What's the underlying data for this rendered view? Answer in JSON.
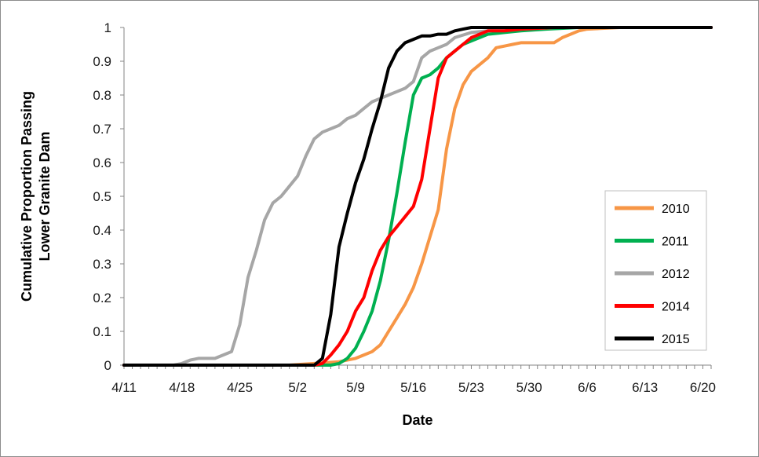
{
  "chart_data": {
    "type": "line",
    "title": "",
    "xlabel": "Date",
    "ylabel_lines": [
      "Cumulative Proportion Passing",
      "Lower Granite Dam"
    ],
    "x_ticks": [
      "4/11",
      "4/18",
      "4/25",
      "5/2",
      "5/9",
      "5/16",
      "5/23",
      "5/30",
      "6/6",
      "6/13",
      "6/20"
    ],
    "x_range": [
      "4/11",
      "6/21"
    ],
    "y_ticks": [
      "0",
      "0.1",
      "0.2",
      "0.3",
      "0.4",
      "0.5",
      "0.6",
      "0.7",
      "0.8",
      "0.9",
      "1"
    ],
    "ylim": [
      0,
      1
    ],
    "grid": false,
    "legend_position": "bottom-right",
    "series": [
      {
        "name": "2010",
        "color": "#f79646",
        "points": [
          [
            "4/11",
            0
          ],
          [
            "5/1",
            0
          ],
          [
            "5/4",
            0.005
          ],
          [
            "5/7",
            0.01
          ],
          [
            "5/9",
            0.02
          ],
          [
            "5/10",
            0.03
          ],
          [
            "5/11",
            0.04
          ],
          [
            "5/12",
            0.06
          ],
          [
            "5/13",
            0.1
          ],
          [
            "5/14",
            0.14
          ],
          [
            "5/15",
            0.18
          ],
          [
            "5/16",
            0.23
          ],
          [
            "5/17",
            0.3
          ],
          [
            "5/18",
            0.38
          ],
          [
            "5/19",
            0.46
          ],
          [
            "5/20",
            0.64
          ],
          [
            "5/21",
            0.76
          ],
          [
            "5/22",
            0.83
          ],
          [
            "5/23",
            0.87
          ],
          [
            "5/24",
            0.89
          ],
          [
            "5/25",
            0.91
          ],
          [
            "5/26",
            0.94
          ],
          [
            "5/27",
            0.945
          ],
          [
            "5/28",
            0.95
          ],
          [
            "5/29",
            0.955
          ],
          [
            "5/30",
            0.955
          ],
          [
            "6/1",
            0.955
          ],
          [
            "6/2",
            0.955
          ],
          [
            "6/3",
            0.97
          ],
          [
            "6/4",
            0.98
          ],
          [
            "6/5",
            0.99
          ],
          [
            "6/6",
            0.995
          ],
          [
            "6/10",
            1
          ],
          [
            "6/21",
            1
          ]
        ]
      },
      {
        "name": "2011",
        "color": "#00b050",
        "points": [
          [
            "4/11",
            0
          ],
          [
            "5/6",
            0
          ],
          [
            "5/7",
            0.005
          ],
          [
            "5/8",
            0.02
          ],
          [
            "5/9",
            0.05
          ],
          [
            "5/10",
            0.1
          ],
          [
            "5/11",
            0.16
          ],
          [
            "5/12",
            0.25
          ],
          [
            "5/13",
            0.37
          ],
          [
            "5/14",
            0.51
          ],
          [
            "5/15",
            0.66
          ],
          [
            "5/16",
            0.8
          ],
          [
            "5/17",
            0.85
          ],
          [
            "5/18",
            0.86
          ],
          [
            "5/19",
            0.88
          ],
          [
            "5/20",
            0.91
          ],
          [
            "5/21",
            0.93
          ],
          [
            "5/22",
            0.95
          ],
          [
            "5/23",
            0.96
          ],
          [
            "5/24",
            0.97
          ],
          [
            "5/25",
            0.98
          ],
          [
            "5/27",
            0.985
          ],
          [
            "5/29",
            0.99
          ],
          [
            "6/1",
            0.995
          ],
          [
            "6/5",
            1
          ],
          [
            "6/21",
            1
          ]
        ]
      },
      {
        "name": "2012",
        "color": "#a6a6a6",
        "points": [
          [
            "4/11",
            0
          ],
          [
            "4/17",
            0
          ],
          [
            "4/18",
            0.005
          ],
          [
            "4/19",
            0.015
          ],
          [
            "4/20",
            0.02
          ],
          [
            "4/21",
            0.02
          ],
          [
            "4/22",
            0.02
          ],
          [
            "4/23",
            0.03
          ],
          [
            "4/24",
            0.04
          ],
          [
            "4/25",
            0.12
          ],
          [
            "4/26",
            0.26
          ],
          [
            "4/27",
            0.34
          ],
          [
            "4/28",
            0.43
          ],
          [
            "4/29",
            0.48
          ],
          [
            "4/30",
            0.5
          ],
          [
            "5/1",
            0.53
          ],
          [
            "5/2",
            0.56
          ],
          [
            "5/3",
            0.62
          ],
          [
            "5/4",
            0.67
          ],
          [
            "5/5",
            0.69
          ],
          [
            "5/6",
            0.7
          ],
          [
            "5/7",
            0.71
          ],
          [
            "5/8",
            0.73
          ],
          [
            "5/9",
            0.74
          ],
          [
            "5/10",
            0.76
          ],
          [
            "5/11",
            0.78
          ],
          [
            "5/12",
            0.79
          ],
          [
            "5/13",
            0.8
          ],
          [
            "5/14",
            0.81
          ],
          [
            "5/15",
            0.82
          ],
          [
            "5/16",
            0.84
          ],
          [
            "5/17",
            0.91
          ],
          [
            "5/18",
            0.93
          ],
          [
            "5/19",
            0.94
          ],
          [
            "5/20",
            0.95
          ],
          [
            "5/21",
            0.97
          ],
          [
            "5/23",
            0.985
          ],
          [
            "5/25",
            0.99
          ],
          [
            "5/29",
            0.995
          ],
          [
            "6/2",
            1
          ],
          [
            "6/21",
            1
          ]
        ]
      },
      {
        "name": "2014",
        "color": "#ff0000",
        "points": [
          [
            "4/11",
            0
          ],
          [
            "5/4",
            0
          ],
          [
            "5/5",
            0.005
          ],
          [
            "5/6",
            0.03
          ],
          [
            "5/7",
            0.06
          ],
          [
            "5/8",
            0.1
          ],
          [
            "5/9",
            0.16
          ],
          [
            "5/10",
            0.2
          ],
          [
            "5/11",
            0.28
          ],
          [
            "5/12",
            0.34
          ],
          [
            "5/13",
            0.38
          ],
          [
            "5/14",
            0.41
          ],
          [
            "5/15",
            0.44
          ],
          [
            "5/16",
            0.47
          ],
          [
            "5/17",
            0.55
          ],
          [
            "5/18",
            0.7
          ],
          [
            "5/19",
            0.85
          ],
          [
            "5/20",
            0.91
          ],
          [
            "5/21",
            0.93
          ],
          [
            "5/22",
            0.95
          ],
          [
            "5/23",
            0.97
          ],
          [
            "5/24",
            0.98
          ],
          [
            "5/25",
            0.99
          ],
          [
            "5/27",
            0.99
          ],
          [
            "5/29",
            0.995
          ],
          [
            "6/2",
            1
          ],
          [
            "6/21",
            1
          ]
        ]
      },
      {
        "name": "2015",
        "color": "#000000",
        "points": [
          [
            "4/11",
            0
          ],
          [
            "5/4",
            0
          ],
          [
            "5/5",
            0.02
          ],
          [
            "5/6",
            0.15
          ],
          [
            "5/7",
            0.35
          ],
          [
            "5/8",
            0.45
          ],
          [
            "5/9",
            0.54
          ],
          [
            "5/10",
            0.61
          ],
          [
            "5/11",
            0.7
          ],
          [
            "5/12",
            0.78
          ],
          [
            "5/13",
            0.88
          ],
          [
            "5/14",
            0.93
          ],
          [
            "5/15",
            0.955
          ],
          [
            "5/16",
            0.965
          ],
          [
            "5/17",
            0.975
          ],
          [
            "5/18",
            0.975
          ],
          [
            "5/19",
            0.98
          ],
          [
            "5/20",
            0.98
          ],
          [
            "5/21",
            0.99
          ],
          [
            "5/22",
            0.995
          ],
          [
            "5/23",
            1
          ],
          [
            "6/21",
            1
          ]
        ]
      }
    ]
  }
}
